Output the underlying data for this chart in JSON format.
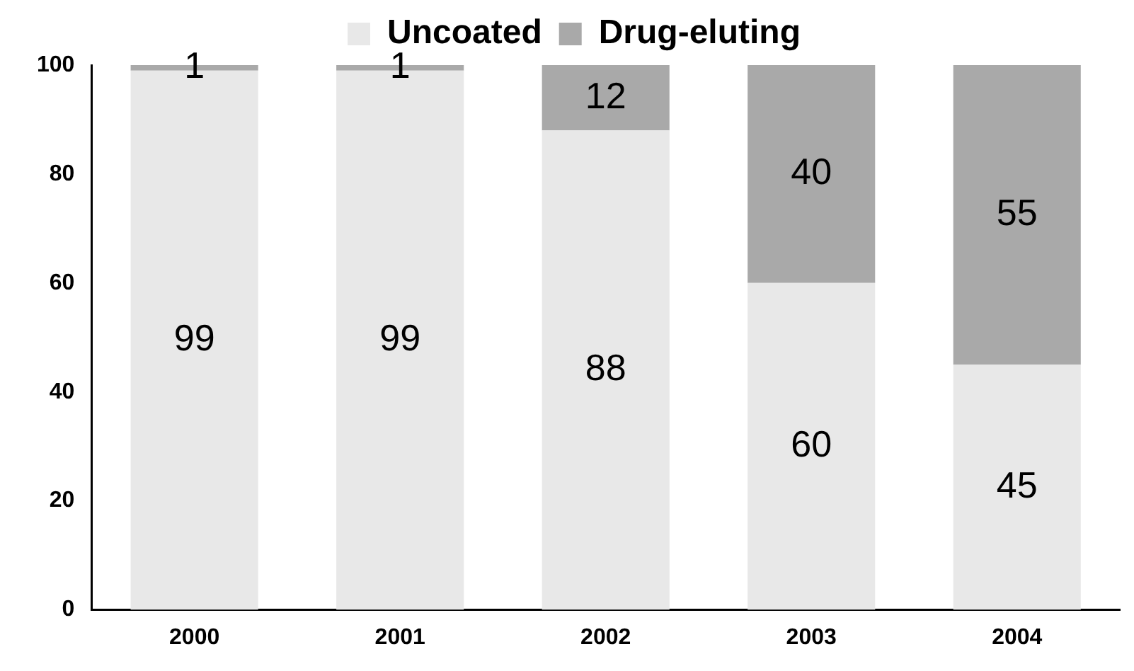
{
  "chart_data": {
    "type": "bar",
    "stacked": true,
    "categories": [
      "2000",
      "2001",
      "2002",
      "2003",
      "2004"
    ],
    "series": [
      {
        "name": "Uncoated",
        "color": "#e8e8e8",
        "values": [
          99,
          99,
          88,
          60,
          45
        ]
      },
      {
        "name": "Drug-eluting",
        "color": "#a9a9a9",
        "values": [
          1,
          1,
          12,
          40,
          55
        ]
      }
    ],
    "ylim": [
      0,
      100
    ],
    "yticks": [
      0,
      20,
      40,
      60,
      80,
      100
    ],
    "grid": false,
    "legend": "top",
    "data_labels": true
  }
}
